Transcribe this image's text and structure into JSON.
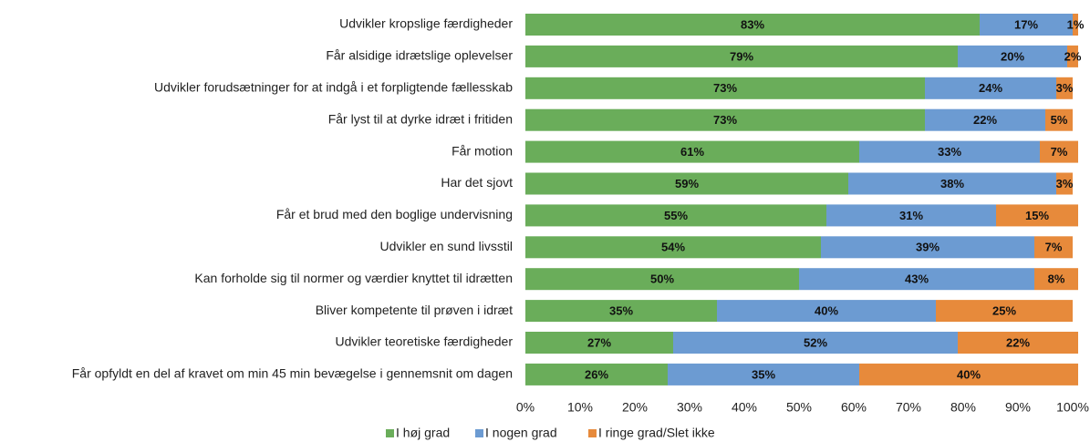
{
  "chart_data": {
    "type": "stacked-bar-horizontal",
    "categories": [
      "Udvikler kropslige færdigheder",
      "Får alsidige idrætslige oplevelser",
      "Udvikler forudsætninger for at indgå i et forpligtende fællesskab",
      "Får lyst til at dyrke idræt i fritiden",
      "Får motion",
      "Har det sjovt",
      "Får et brud med den boglige undervisning",
      "Udvikler en sund livsstil",
      "Kan forholde sig til normer og værdier knyttet til idrætten",
      "Bliver kompetente til prøven i idræt",
      "Udvikler teoretiske færdigheder",
      "Får opfyldt en del af kravet om min 45 min bevægelse i gennemsnit om dagen"
    ],
    "series": [
      {
        "name": "I høj grad",
        "color": "#6aad5a",
        "values": [
          83,
          79,
          73,
          73,
          61,
          59,
          55,
          54,
          50,
          35,
          27,
          26
        ],
        "value_labels": [
          "83%",
          "79%",
          "73%",
          "73%",
          "61%",
          "59%",
          "55%",
          "54%",
          "50%",
          "35%",
          "27%",
          "26%"
        ]
      },
      {
        "name": "I nogen grad",
        "color": "#6c9bd2",
        "values": [
          17,
          20,
          24,
          22,
          33,
          38,
          31,
          39,
          43,
          40,
          52,
          35
        ],
        "value_labels": [
          "17%",
          "20%",
          "24%",
          "22%",
          "33%",
          "38%",
          "31%",
          "39%",
          "43%",
          "40%",
          "52%",
          "35%"
        ]
      },
      {
        "name": "I ringe grad/Slet ikke",
        "color": "#e78a3b",
        "values": [
          1,
          2,
          3,
          5,
          7,
          3,
          15,
          7,
          8,
          25,
          22,
          40
        ],
        "value_labels": [
          "1%",
          "2%",
          "3%",
          "5%",
          "7%",
          "3%",
          "15%",
          "7%",
          "8%",
          "25%",
          "22%",
          "40%"
        ]
      }
    ],
    "xlim": [
      0,
      100
    ],
    "xticks": [
      {
        "value": 0,
        "label": "0%"
      },
      {
        "value": 10,
        "label": "10%"
      },
      {
        "value": 20,
        "label": "20%"
      },
      {
        "value": 30,
        "label": "30%"
      },
      {
        "value": 40,
        "label": "40%"
      },
      {
        "value": 50,
        "label": "50%"
      },
      {
        "value": 60,
        "label": "60%"
      },
      {
        "value": 70,
        "label": "70%"
      },
      {
        "value": 80,
        "label": "80%"
      },
      {
        "value": 90,
        "label": "90%"
      },
      {
        "value": 100,
        "label": "100%"
      }
    ],
    "grid": false
  }
}
